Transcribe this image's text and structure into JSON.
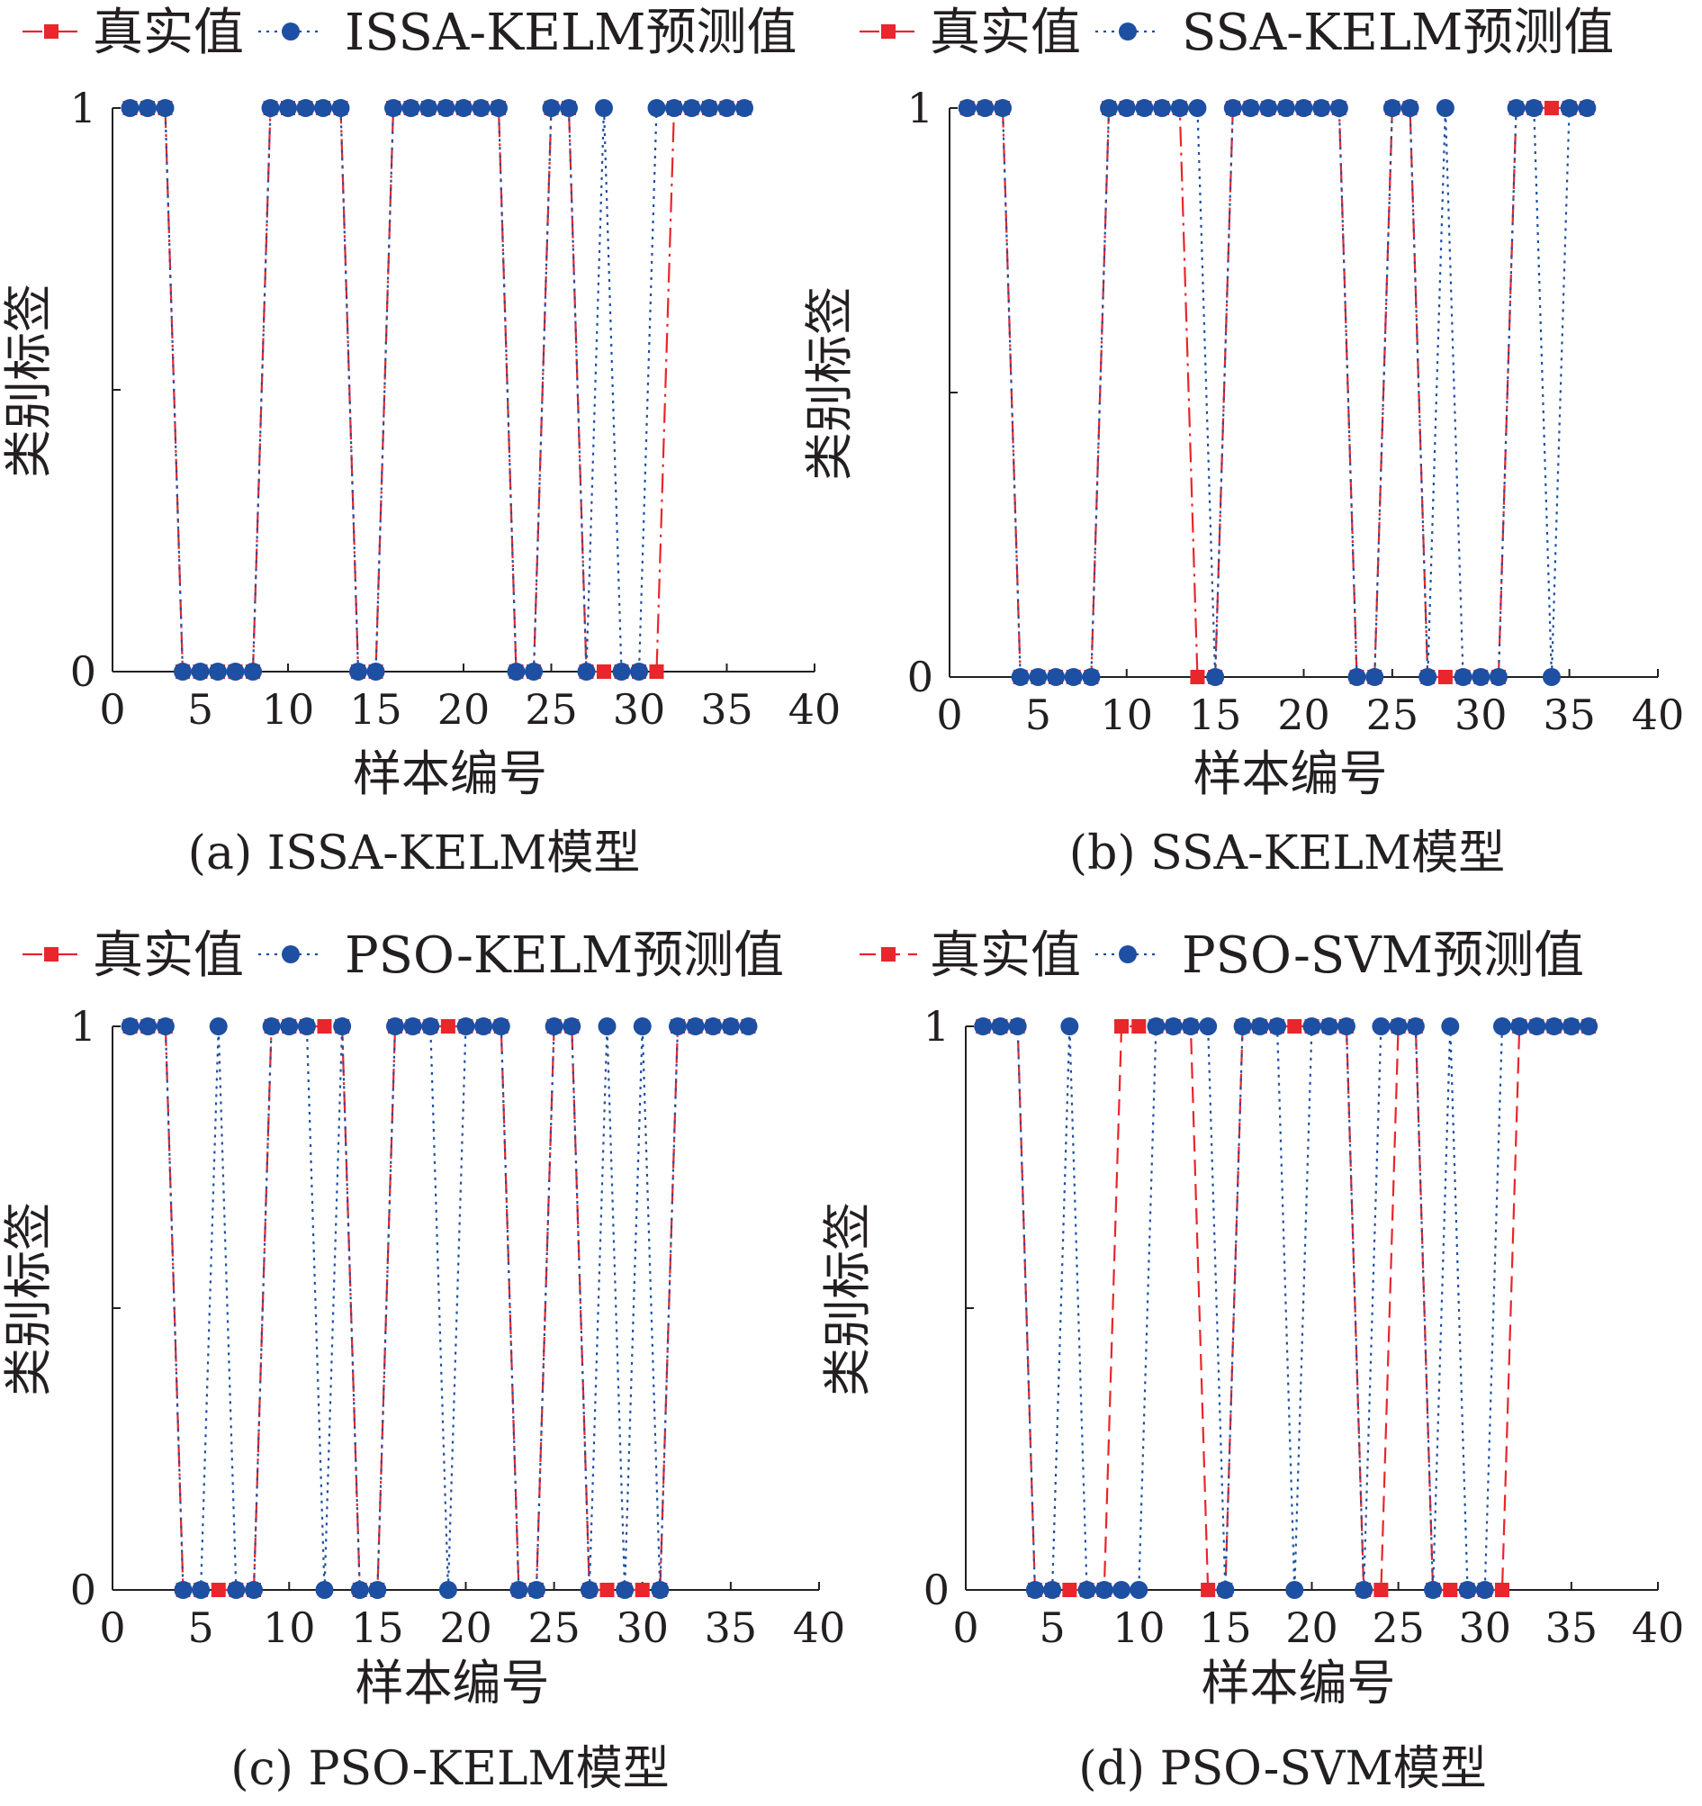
{
  "colors": {
    "true_series": "#e8262b",
    "pred_series": "#1d4fa3",
    "axis": "#231f20"
  },
  "chart_data": [
    {
      "type": "line",
      "caption": "(a) ISSA-KELM模型",
      "xlabel": "样本编号",
      "ylabel": "类别标签",
      "xlim": [
        0,
        40
      ],
      "ylim": [
        0,
        1
      ],
      "xticks": [
        0,
        5,
        10,
        15,
        20,
        25,
        30,
        35,
        40
      ],
      "yticks": [
        0,
        1
      ],
      "grid": false,
      "legend_position": "top",
      "x": [
        1,
        2,
        3,
        4,
        5,
        6,
        7,
        8,
        9,
        10,
        11,
        12,
        13,
        14,
        15,
        16,
        17,
        18,
        19,
        20,
        21,
        22,
        23,
        24,
        25,
        26,
        27,
        28,
        29,
        30,
        31,
        32,
        33,
        34,
        35,
        36
      ],
      "series": [
        {
          "name": "真实值",
          "marker": "square",
          "line": "dash-dot",
          "values": [
            1,
            1,
            1,
            0,
            0,
            0,
            0,
            0,
            1,
            1,
            1,
            1,
            1,
            0,
            0,
            1,
            1,
            1,
            1,
            1,
            1,
            1,
            0,
            0,
            1,
            1,
            0,
            0,
            0,
            0,
            0,
            1,
            1,
            1,
            1,
            1
          ]
        },
        {
          "name": "ISSA-KELM预测值",
          "marker": "circle",
          "line": "dotted",
          "values": [
            1,
            1,
            1,
            0,
            0,
            0,
            0,
            0,
            1,
            1,
            1,
            1,
            1,
            0,
            0,
            1,
            1,
            1,
            1,
            1,
            1,
            1,
            0,
            0,
            1,
            1,
            0,
            1,
            0,
            0,
            1,
            1,
            1,
            1,
            1,
            1
          ]
        }
      ]
    },
    {
      "type": "line",
      "caption": "(b) SSA-KELM模型",
      "xlabel": "样本编号",
      "ylabel": "类别标签",
      "xlim": [
        0,
        40
      ],
      "ylim": [
        0,
        1
      ],
      "xticks": [
        0,
        5,
        10,
        15,
        20,
        25,
        30,
        35,
        40
      ],
      "yticks": [
        0,
        1
      ],
      "grid": false,
      "legend_position": "top",
      "x": [
        1,
        2,
        3,
        4,
        5,
        6,
        7,
        8,
        9,
        10,
        11,
        12,
        13,
        14,
        15,
        16,
        17,
        18,
        19,
        20,
        21,
        22,
        23,
        24,
        25,
        26,
        27,
        28,
        29,
        30,
        31,
        32,
        33,
        34,
        35,
        36
      ],
      "series": [
        {
          "name": "真实值",
          "marker": "square",
          "line": "dash-dot",
          "values": [
            1,
            1,
            1,
            0,
            0,
            0,
            0,
            0,
            1,
            1,
            1,
            1,
            1,
            0,
            0,
            1,
            1,
            1,
            1,
            1,
            1,
            1,
            0,
            0,
            1,
            1,
            0,
            0,
            0,
            0,
            0,
            1,
            1,
            1,
            1,
            1
          ]
        },
        {
          "name": "SSA-KELM预测值",
          "marker": "circle",
          "line": "dotted",
          "values": [
            1,
            1,
            1,
            0,
            0,
            0,
            0,
            0,
            1,
            1,
            1,
            1,
            1,
            1,
            0,
            1,
            1,
            1,
            1,
            1,
            1,
            1,
            0,
            0,
            1,
            1,
            0,
            1,
            0,
            0,
            0,
            1,
            1,
            0,
            1,
            1
          ]
        }
      ]
    },
    {
      "type": "line",
      "caption": "(c) PSO-KELM模型",
      "xlabel": "样本编号",
      "ylabel": "类别标签",
      "xlim": [
        0,
        40
      ],
      "ylim": [
        0,
        1
      ],
      "xticks": [
        0,
        5,
        10,
        15,
        20,
        25,
        30,
        35,
        40
      ],
      "yticks": [
        0,
        1
      ],
      "grid": false,
      "legend_position": "top",
      "x": [
        1,
        2,
        3,
        4,
        5,
        6,
        7,
        8,
        9,
        10,
        11,
        12,
        13,
        14,
        15,
        16,
        17,
        18,
        19,
        20,
        21,
        22,
        23,
        24,
        25,
        26,
        27,
        28,
        29,
        30,
        31,
        32,
        33,
        34,
        35,
        36
      ],
      "series": [
        {
          "name": "真实值",
          "marker": "square",
          "line": "dash-dot",
          "values": [
            1,
            1,
            1,
            0,
            0,
            0,
            0,
            0,
            1,
            1,
            1,
            1,
            1,
            0,
            0,
            1,
            1,
            1,
            1,
            1,
            1,
            1,
            0,
            0,
            1,
            1,
            0,
            0,
            0,
            0,
            0,
            1,
            1,
            1,
            1,
            1
          ]
        },
        {
          "name": "PSO-KELM预测值",
          "marker": "circle",
          "line": "dotted",
          "values": [
            1,
            1,
            1,
            0,
            0,
            1,
            0,
            0,
            1,
            1,
            1,
            0,
            1,
            0,
            0,
            1,
            1,
            1,
            0,
            1,
            1,
            1,
            0,
            0,
            1,
            1,
            0,
            1,
            0,
            1,
            0,
            1,
            1,
            1,
            1,
            1
          ]
        }
      ]
    },
    {
      "type": "line",
      "caption": "(d) PSO-SVM模型",
      "xlabel": "样本编号",
      "ylabel": "类别标签",
      "xlim": [
        0,
        40
      ],
      "ylim": [
        0,
        1
      ],
      "xticks": [
        0,
        5,
        10,
        15,
        20,
        25,
        30,
        35,
        40
      ],
      "yticks": [
        0,
        1
      ],
      "grid": false,
      "legend_position": "top",
      "x": [
        1,
        2,
        3,
        4,
        5,
        6,
        7,
        8,
        9,
        10,
        11,
        12,
        13,
        14,
        15,
        16,
        17,
        18,
        19,
        20,
        21,
        22,
        23,
        24,
        25,
        26,
        27,
        28,
        29,
        30,
        31,
        32,
        33,
        34,
        35,
        36
      ],
      "series": [
        {
          "name": "真实值",
          "marker": "square",
          "line": "dashed",
          "values": [
            1,
            1,
            1,
            0,
            0,
            0,
            0,
            0,
            1,
            1,
            1,
            1,
            1,
            0,
            0,
            1,
            1,
            1,
            1,
            1,
            1,
            1,
            0,
            0,
            1,
            1,
            0,
            0,
            0,
            0,
            0,
            1,
            1,
            1,
            1,
            1
          ]
        },
        {
          "name": "PSO-SVM预测值",
          "marker": "circle",
          "line": "dotted",
          "values": [
            1,
            1,
            1,
            0,
            0,
            1,
            0,
            0,
            0,
            0,
            1,
            1,
            1,
            1,
            0,
            1,
            1,
            1,
            0,
            1,
            1,
            1,
            0,
            1,
            1,
            1,
            0,
            1,
            0,
            0,
            1,
            1,
            1,
            1,
            1,
            1
          ]
        }
      ]
    }
  ]
}
